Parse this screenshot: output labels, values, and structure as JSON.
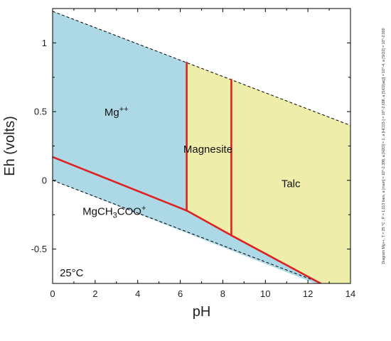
{
  "chart_data": {
    "type": "area",
    "title": "",
    "xlabel": "pH",
    "ylabel": "Eh (volts)",
    "xlim": [
      0,
      14
    ],
    "ylim": [
      -0.75,
      1.25
    ],
    "x_ticks": [
      0,
      2,
      4,
      6,
      8,
      10,
      12,
      14
    ],
    "y_ticks": [
      -0.5,
      0,
      0.5,
      1
    ],
    "y_tick_labels": [
      "-0.5",
      "0",
      "0.5",
      "1"
    ],
    "temperature_label": "25°C",
    "side_note": "Diagram Mg++, T = 25 °C , P = 1.013 bars, a [main] = 10^-2.398, a [H2O] = 1, a [HCO3-] = 10^-2.698, a [SiO2(aq)] = 10^-4, a [SiO2] = 10^-2.000",
    "colors": {
      "aqueous_field": "#add8e6",
      "mineral_field": "#eeeeaa",
      "boundary": "#dd2222",
      "water_limit": "#000000"
    },
    "water_stability_lines": [
      {
        "name": "upper",
        "points": [
          [
            0,
            1.23
          ],
          [
            14,
            0.4
          ]
        ]
      },
      {
        "name": "lower",
        "points": [
          [
            0,
            0.0
          ],
          [
            14,
            -0.83
          ]
        ]
      }
    ],
    "fields": [
      {
        "key": "mg",
        "label_base": "Mg",
        "label_sup": "++",
        "label_sub": "",
        "label_tail": "",
        "label_at": [
          3.0,
          0.47
        ],
        "kind": "aqueous",
        "polygon": [
          [
            0,
            1.23
          ],
          [
            6.3,
            0.857
          ],
          [
            6.3,
            -0.22
          ],
          [
            0,
            0.17
          ]
        ]
      },
      {
        "key": "mgch3coo",
        "label_base": "MgCH",
        "label_sup": "+",
        "label_sub": "3",
        "label_tail": "COO",
        "label_at": [
          2.9,
          -0.25
        ],
        "kind": "aqueous",
        "polygon": [
          [
            0,
            0.17
          ],
          [
            6.3,
            -0.22
          ],
          [
            8.4,
            -0.4
          ],
          [
            12.6,
            -0.75
          ],
          [
            12.35,
            -0.75
          ],
          [
            0,
            0.0
          ]
        ]
      },
      {
        "key": "magnesite",
        "label_base": "Magnesite",
        "label_sup": "",
        "label_sub": "",
        "label_tail": "",
        "label_at": [
          7.3,
          0.2
        ],
        "kind": "mineral",
        "polygon": [
          [
            6.3,
            0.857
          ],
          [
            8.4,
            0.733
          ],
          [
            8.4,
            -0.4
          ],
          [
            6.3,
            -0.22
          ]
        ]
      },
      {
        "key": "talc",
        "label_base": "Talc",
        "label_sup": "",
        "label_sub": "",
        "label_tail": "",
        "label_at": [
          11.2,
          -0.05
        ],
        "kind": "mineral",
        "polygon": [
          [
            8.4,
            0.733
          ],
          [
            14,
            0.4
          ],
          [
            14,
            -0.75
          ],
          [
            12.6,
            -0.75
          ],
          [
            8.4,
            -0.4
          ]
        ]
      }
    ],
    "boundaries": [
      {
        "name": "mg-to-mgch3coo",
        "points": [
          [
            0,
            0.17
          ],
          [
            6.3,
            -0.22
          ]
        ]
      },
      {
        "name": "magnesite-lower",
        "points": [
          [
            6.3,
            -0.22
          ],
          [
            8.4,
            -0.4
          ]
        ]
      },
      {
        "name": "talc-lower",
        "points": [
          [
            8.4,
            -0.4
          ],
          [
            12.6,
            -0.75
          ]
        ]
      },
      {
        "name": "mg-magnesite",
        "points": [
          [
            6.3,
            0.857
          ],
          [
            6.3,
            -0.22
          ]
        ]
      },
      {
        "name": "magnesite-talc",
        "points": [
          [
            8.4,
            0.733
          ],
          [
            8.4,
            -0.4
          ]
        ]
      }
    ]
  }
}
